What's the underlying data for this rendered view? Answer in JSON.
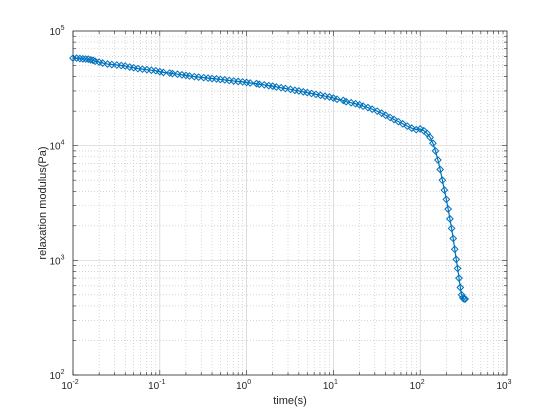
{
  "chart_data": {
    "type": "line",
    "xlabel": "time(s)",
    "ylabel": "relaxation modulus(Pa)",
    "xscale": "log",
    "yscale": "log",
    "xlim": [
      0.01,
      1000
    ],
    "ylim": [
      100,
      100000
    ],
    "grid": "major and minor",
    "marker": "diamond",
    "color": "#0072BD",
    "x_ticks": [
      {
        "value": 0.01,
        "base": "10",
        "exp": "-2"
      },
      {
        "value": 0.1,
        "base": "10",
        "exp": "-1"
      },
      {
        "value": 1,
        "base": "10",
        "exp": "0"
      },
      {
        "value": 10,
        "base": "10",
        "exp": "1"
      },
      {
        "value": 100,
        "base": "10",
        "exp": "2"
      },
      {
        "value": 1000,
        "base": "10",
        "exp": "3"
      }
    ],
    "y_ticks": [
      {
        "value": 100,
        "base": "10",
        "exp": "2"
      },
      {
        "value": 1000,
        "base": "10",
        "exp": "3"
      },
      {
        "value": 10000,
        "base": "10",
        "exp": "4"
      },
      {
        "value": 100000,
        "base": "10",
        "exp": "5"
      }
    ],
    "series": [
      {
        "x": [
          0.01,
          0.011,
          0.012,
          0.013,
          0.014,
          0.015,
          0.016,
          0.017,
          0.018,
          0.02,
          0.022,
          0.025,
          0.028,
          0.032,
          0.036,
          0.04,
          0.045,
          0.05,
          0.056,
          0.063,
          0.071,
          0.08,
          0.09,
          0.1,
          0.11,
          0.13,
          0.14,
          0.16,
          0.18,
          0.2,
          0.22,
          0.25,
          0.28,
          0.32,
          0.36,
          0.4,
          0.45,
          0.5,
          0.56,
          0.63,
          0.71,
          0.8,
          0.9,
          1.0,
          1.1,
          1.3,
          1.4,
          1.6,
          1.8,
          2.0,
          2.2,
          2.5,
          2.8,
          3.2,
          3.6,
          4.0,
          4.5,
          5.0,
          5.6,
          6.3,
          7.1,
          8.0,
          9.0,
          10,
          11,
          13,
          14,
          16,
          18,
          20,
          22,
          25,
          28,
          32,
          36,
          40,
          45,
          50,
          56,
          63,
          71,
          80,
          90,
          100,
          110,
          120,
          130,
          140,
          150,
          160,
          170,
          180,
          190,
          200,
          210,
          220,
          230,
          240,
          250,
          260,
          270,
          280,
          290,
          300,
          310,
          320,
          330
        ],
        "y": [
          58000,
          58000,
          57500,
          57200,
          57000,
          56800,
          56000,
          55500,
          54500,
          53500,
          52500,
          51500,
          51000,
          50500,
          50000,
          49500,
          48500,
          47800,
          47000,
          46500,
          46000,
          45500,
          45000,
          44200,
          43500,
          43000,
          42500,
          42000,
          41500,
          41000,
          40500,
          40000,
          39600,
          39200,
          38800,
          38500,
          38200,
          37800,
          37500,
          37000,
          36600,
          36300,
          36000,
          35600,
          35200,
          34800,
          34300,
          33900,
          33400,
          33000,
          32500,
          32000,
          31500,
          31000,
          30400,
          30000,
          29500,
          29000,
          28500,
          28000,
          27500,
          27000,
          26600,
          26000,
          25400,
          24800,
          24200,
          23700,
          23200,
          22700,
          22100,
          21500,
          20800,
          20000,
          19200,
          18400,
          17600,
          16900,
          16200,
          15500,
          14800,
          14200,
          13800,
          14000,
          13500,
          12800,
          11800,
          10500,
          9000,
          7500,
          6200,
          5000,
          4100,
          3400,
          2800,
          2300,
          1900,
          1550,
          1250,
          1020,
          850,
          700,
          580,
          500,
          470,
          460,
          460
        ]
      }
    ]
  }
}
